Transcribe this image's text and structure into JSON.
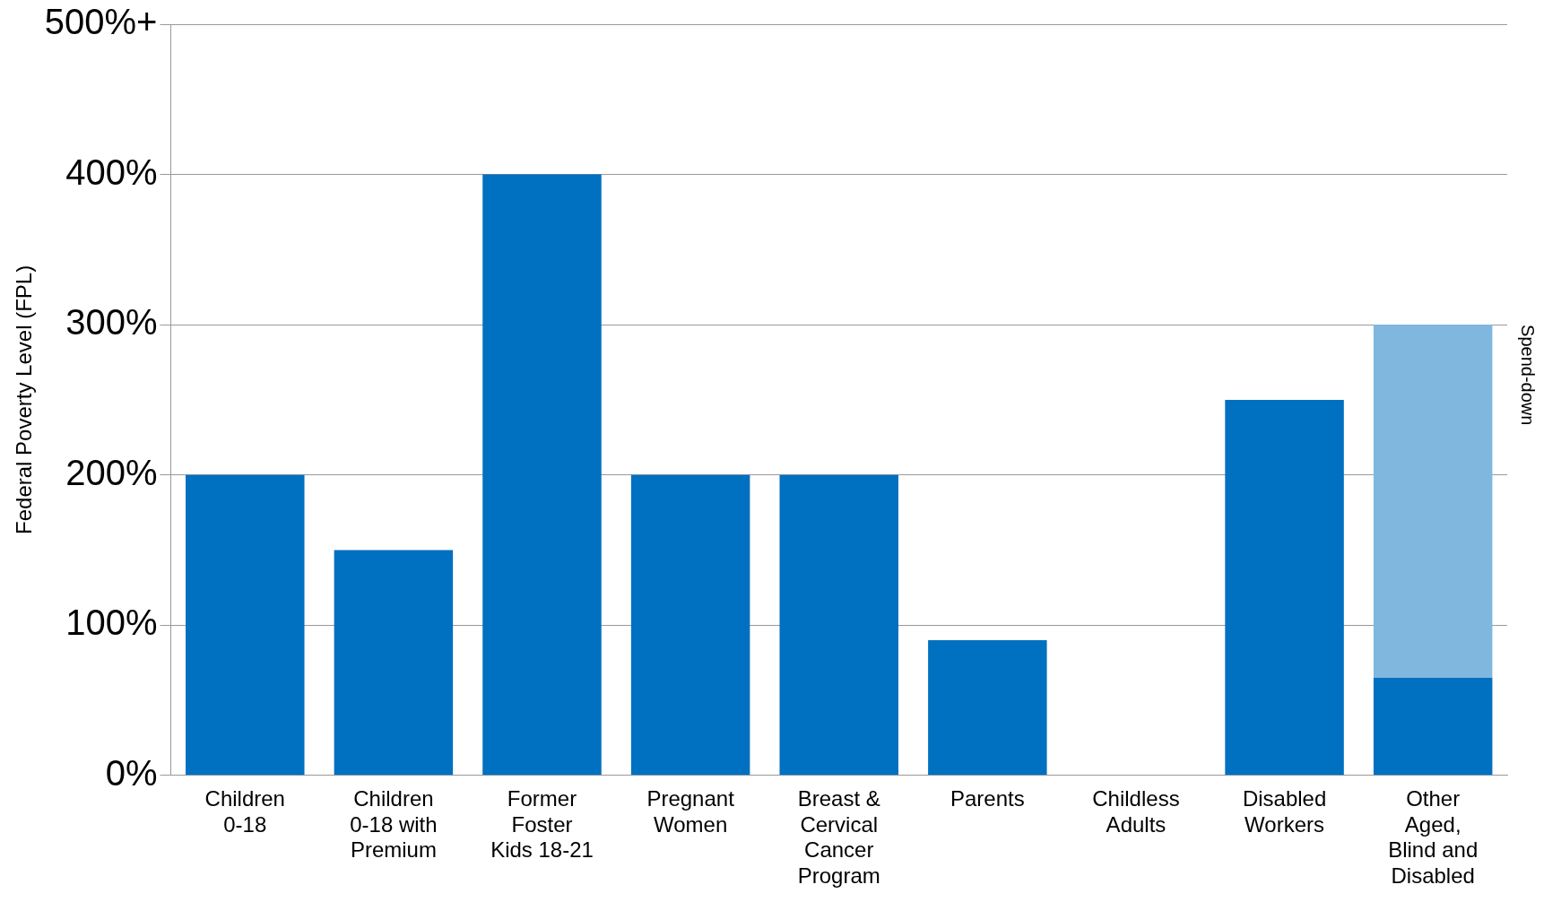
{
  "chart_data": {
    "type": "bar",
    "ylabel": "Federal Poverty Level (FPL)",
    "categories": [
      "Children 0-18",
      "Children 0-18 with Premium",
      "Former Foster Kids 18-21",
      "Pregnant Women",
      "Breast & Cervical Cancer Program",
      "Parents",
      "Childless Adults",
      "Disabled Workers",
      "Other Aged, Blind and Disabled"
    ],
    "stacked": true,
    "series": [
      {
        "color": "#0070c0",
        "values": [
          200,
          150,
          400,
          200,
          200,
          90,
          null,
          250,
          65
        ]
      },
      {
        "name": "Spend-down",
        "color": "#7fb7df",
        "values": [
          null,
          null,
          null,
          null,
          null,
          null,
          null,
          null,
          235
        ]
      }
    ],
    "ylim": [
      0,
      500
    ],
    "yticks": [
      {
        "value": 0,
        "label": "0%"
      },
      {
        "value": 100,
        "label": "100%"
      },
      {
        "value": 200,
        "label": "200%"
      },
      {
        "value": 300,
        "label": "300%"
      },
      {
        "value": 400,
        "label": "400%"
      },
      {
        "value": 500,
        "label": "500%+"
      }
    ],
    "grid": "y",
    "legend": false
  }
}
